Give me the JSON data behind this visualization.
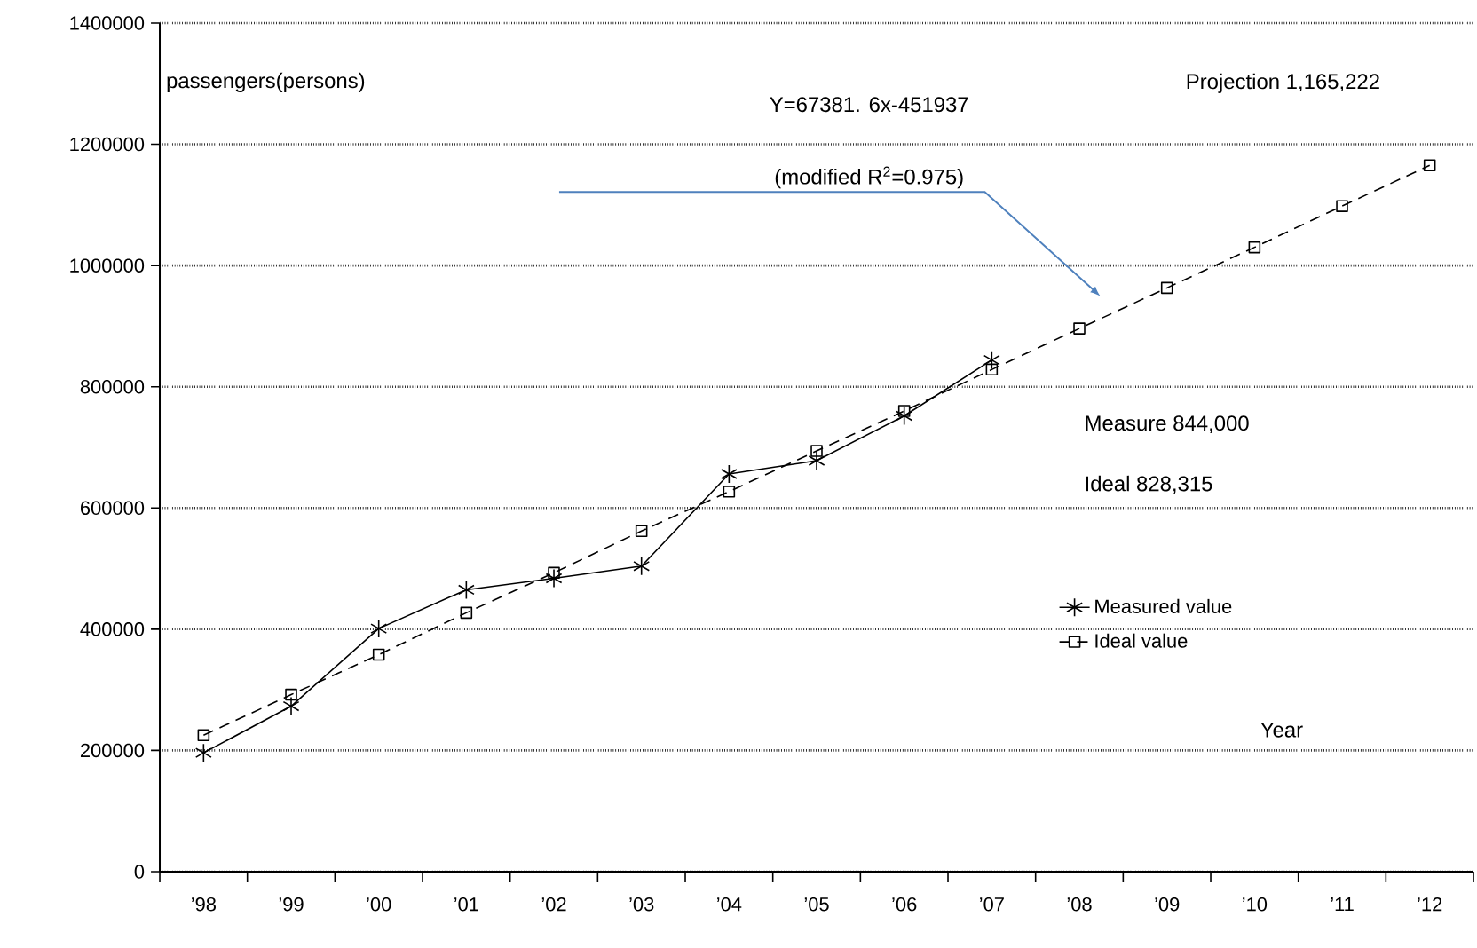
{
  "chart_data": {
    "type": "line",
    "ylabel": "passengers(persons)",
    "xlabel": "Year",
    "categories": [
      "’98",
      "’99",
      "’00",
      "’01",
      "’02",
      "’03",
      "’04",
      "’05",
      "’06",
      "’07",
      "’08",
      "’09",
      "’10",
      "’11",
      "’12"
    ],
    "series": [
      {
        "name": "Measured value",
        "color": "#000000",
        "marker": "cross",
        "line_style": "solid",
        "values": [
          196000,
          273000,
          401000,
          465000,
          484000,
          504000,
          656000,
          678000,
          752000,
          844000,
          null,
          null,
          null,
          null,
          null
        ]
      },
      {
        "name": "Ideal value",
        "color": "#000000",
        "marker": "square",
        "line_style": "dashed",
        "values": [
          225000,
          292000,
          358000,
          427000,
          493000,
          562000,
          627000,
          694000,
          760000,
          828315,
          896000,
          963000,
          1030000,
          1098000,
          1165222
        ]
      }
    ],
    "ylim": [
      0,
      1400000
    ],
    "yticks": [
      0,
      200000,
      400000,
      600000,
      800000,
      1000000,
      1200000,
      1400000
    ],
    "grid": "y",
    "legend": "right",
    "annotations": [
      "Y=67381. 6x-451937",
      "(modified R$^{2}$=0.975)",
      "Projection 1,165,222",
      "Measure 844,000",
      "Ideal 828,315"
    ]
  }
}
